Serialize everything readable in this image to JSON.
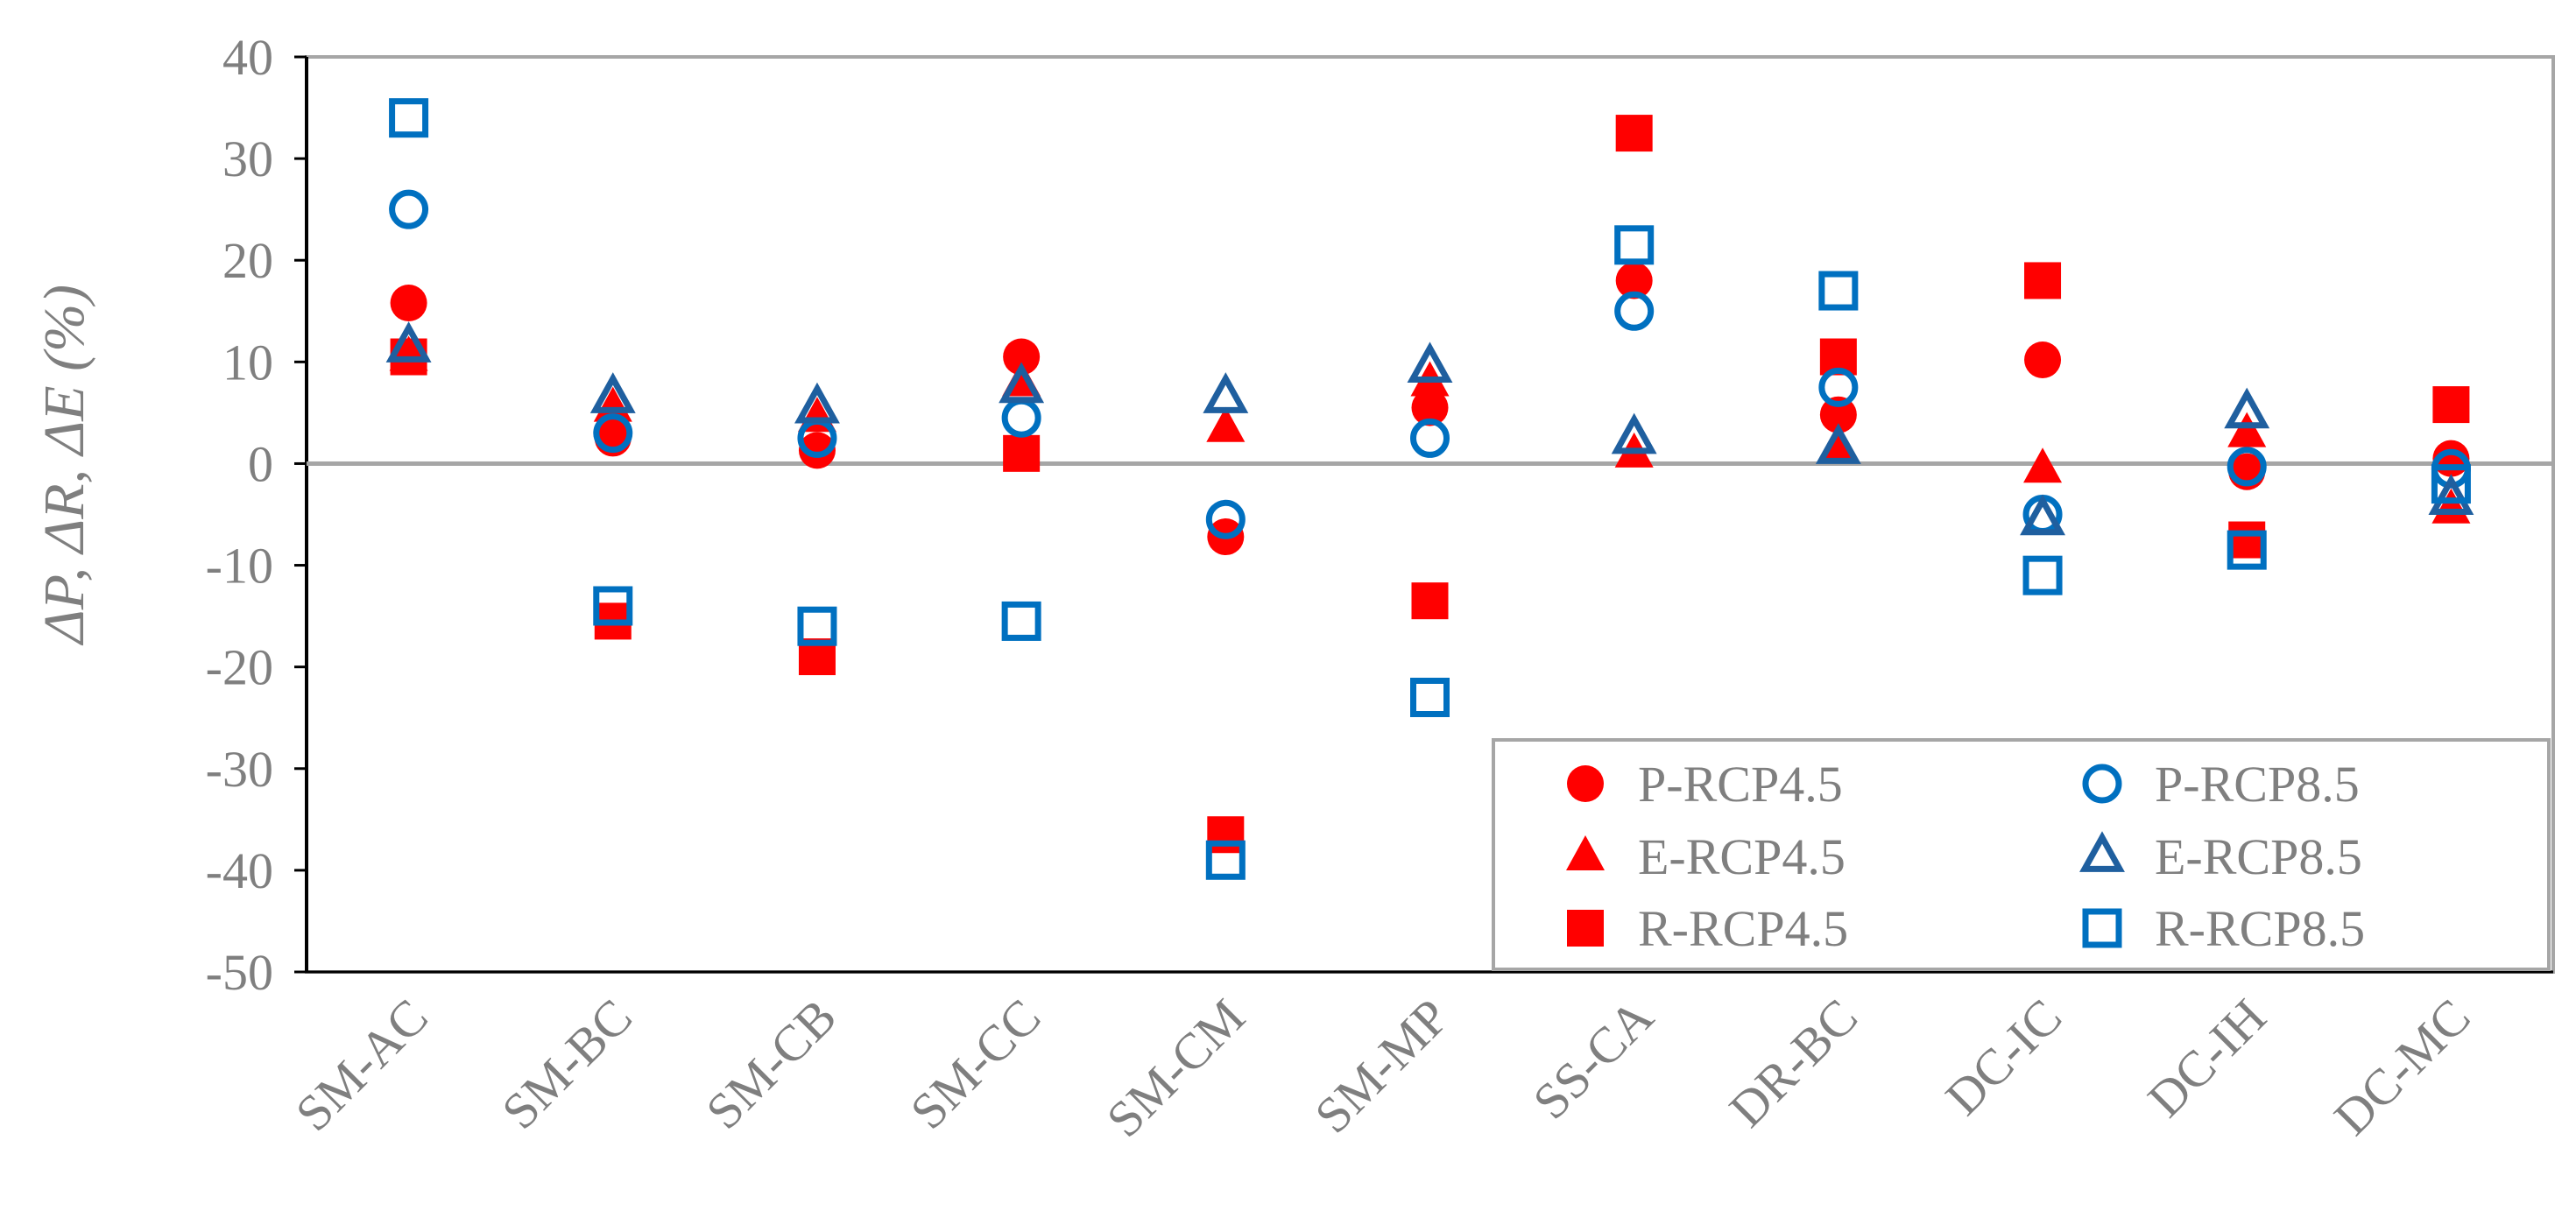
{
  "chart_data": {
    "type": "scatter",
    "title": "",
    "xlabel": "",
    "ylabel": "ΔP, ΔR, ΔE (%)",
    "ylim": [
      -50,
      40
    ],
    "yticks": [
      40,
      30,
      20,
      10,
      0,
      -10,
      -20,
      -30,
      -40,
      -50
    ],
    "categories": [
      "SM-AC",
      "SM-BC",
      "SM-CB",
      "SM-CC",
      "SM-CM",
      "SM-MP",
      "SS-CA",
      "DR-BC",
      "DC-IC",
      "DC-IH",
      "DC-MC"
    ],
    "legend_position": "lower-right",
    "series": [
      {
        "name": "P-RCP4.5",
        "marker": "circle",
        "filled": true,
        "color": "#ff0000",
        "values": [
          15.8,
          2.5,
          1.3,
          10.5,
          -7.2,
          5.5,
          18.0,
          4.8,
          10.2,
          -0.8,
          0.5
        ]
      },
      {
        "name": "P-RCP8.5",
        "marker": "circle",
        "filled": false,
        "color": "#0070c0",
        "values": [
          25.0,
          3.0,
          2.5,
          4.5,
          -5.5,
          2.5,
          15.0,
          7.5,
          -5.0,
          -0.3,
          -0.5
        ]
      },
      {
        "name": "E-RCP4.5",
        "marker": "triangle",
        "filled": true,
        "color": "#ff0000",
        "values": [
          10.5,
          5.5,
          4.5,
          8.0,
          3.5,
          8.0,
          1.0,
          1.5,
          -0.5,
          3.0,
          -4.5
        ]
      },
      {
        "name": "E-RCP8.5",
        "marker": "triangle",
        "filled": false,
        "color": "#1f5f9f",
        "values": [
          11.5,
          6.5,
          5.5,
          7.5,
          6.5,
          9.5,
          2.5,
          1.5,
          -5.5,
          5.0,
          -3.5
        ]
      },
      {
        "name": "R-RCP4.5",
        "marker": "square",
        "filled": true,
        "color": "#ff0000",
        "values": [
          10.5,
          -15.5,
          -19.0,
          1.0,
          -36.5,
          -13.5,
          32.5,
          10.5,
          18.0,
          -7.5,
          5.8
        ]
      },
      {
        "name": "R-RCP8.5",
        "marker": "square",
        "filled": false,
        "color": "#0070c0",
        "values": [
          34.0,
          -14.0,
          -16.0,
          -15.5,
          -39.0,
          -23.0,
          21.5,
          17.0,
          -11.0,
          -8.5,
          -2.0
        ]
      }
    ]
  }
}
